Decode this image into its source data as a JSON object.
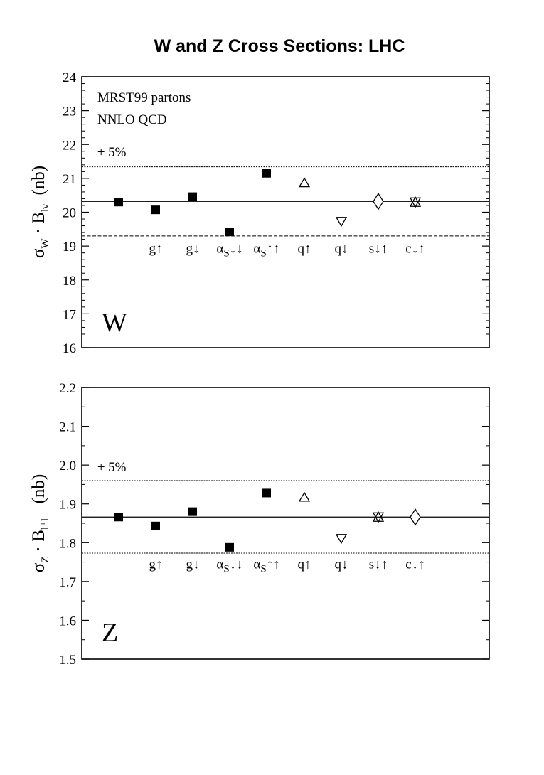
{
  "title": "W and Z Cross Sections: LHC",
  "chart_data": [
    {
      "type": "scatter",
      "panel": "W",
      "panel_label": "W",
      "ylabel": {
        "main": "σ",
        "sub1": "W",
        "mid": " · B",
        "sub2": "lν",
        "unit": "(nb)"
      },
      "ylim": [
        16,
        24
      ],
      "yticks": [
        "16",
        "17",
        "18",
        "19",
        "20",
        "21",
        "22",
        "23",
        "24"
      ],
      "annotations": [
        "MRST99 partons",
        "NNLO QCD",
        "± 5%"
      ],
      "central_value": 20.32,
      "band": [
        19.3,
        21.34
      ],
      "points": [
        {
          "label": "",
          "sub": "",
          "suffix": "",
          "value": 20.3,
          "marker": "square"
        },
        {
          "label": "g↑",
          "sub": "",
          "suffix": "",
          "value": 20.07,
          "marker": "square"
        },
        {
          "label": "g↓",
          "sub": "",
          "suffix": "",
          "value": 20.46,
          "marker": "square"
        },
        {
          "label": "α",
          "sub": "S",
          "suffix": "↓↓",
          "value": 19.42,
          "marker": "square"
        },
        {
          "label": "α",
          "sub": "S",
          "suffix": "↑↑",
          "value": 21.15,
          "marker": "square"
        },
        {
          "label": "q↑",
          "sub": "",
          "suffix": "",
          "value": 20.88,
          "marker": "triangle-up"
        },
        {
          "label": "q↓",
          "sub": "",
          "suffix": "",
          "value": 19.72,
          "marker": "triangle-down"
        },
        {
          "label": "s↓↑",
          "sub": "",
          "suffix": "",
          "value": 20.32,
          "marker": "diamond"
        },
        {
          "label": "c↓↑",
          "sub": "",
          "suffix": "",
          "value": 20.3,
          "marker": "star"
        }
      ]
    },
    {
      "type": "scatter",
      "panel": "Z",
      "panel_label": "Z",
      "ylabel": {
        "main": "σ",
        "sub1": "Z",
        "mid": " · B",
        "sub2": "l⁺l⁻",
        "unit": "(nb)"
      },
      "ylim": [
        1.5,
        2.2
      ],
      "yticks": [
        "1.5",
        "1.6",
        "1.7",
        "1.8",
        "1.9",
        "2.0",
        "2.1",
        "2.2"
      ],
      "annotations": [
        "± 5%"
      ],
      "central_value": 1.866,
      "band": [
        1.773,
        1.96
      ],
      "points": [
        {
          "label": "",
          "sub": "",
          "suffix": "",
          "value": 1.866,
          "marker": "square"
        },
        {
          "label": "g↑",
          "sub": "",
          "suffix": "",
          "value": 1.843,
          "marker": "square"
        },
        {
          "label": "g↓",
          "sub": "",
          "suffix": "",
          "value": 1.88,
          "marker": "square"
        },
        {
          "label": "α",
          "sub": "S",
          "suffix": "↓↓",
          "value": 1.788,
          "marker": "square"
        },
        {
          "label": "α",
          "sub": "S",
          "suffix": "↑↑",
          "value": 1.928,
          "marker": "square"
        },
        {
          "label": "q↑",
          "sub": "",
          "suffix": "",
          "value": 1.918,
          "marker": "triangle-up"
        },
        {
          "label": "q↓",
          "sub": "",
          "suffix": "",
          "value": 1.81,
          "marker": "triangle-down"
        },
        {
          "label": "s↓↑",
          "sub": "",
          "suffix": "",
          "value": 1.866,
          "marker": "star"
        },
        {
          "label": "c↓↑",
          "sub": "",
          "suffix": "",
          "value": 1.866,
          "marker": "diamond"
        }
      ]
    }
  ]
}
